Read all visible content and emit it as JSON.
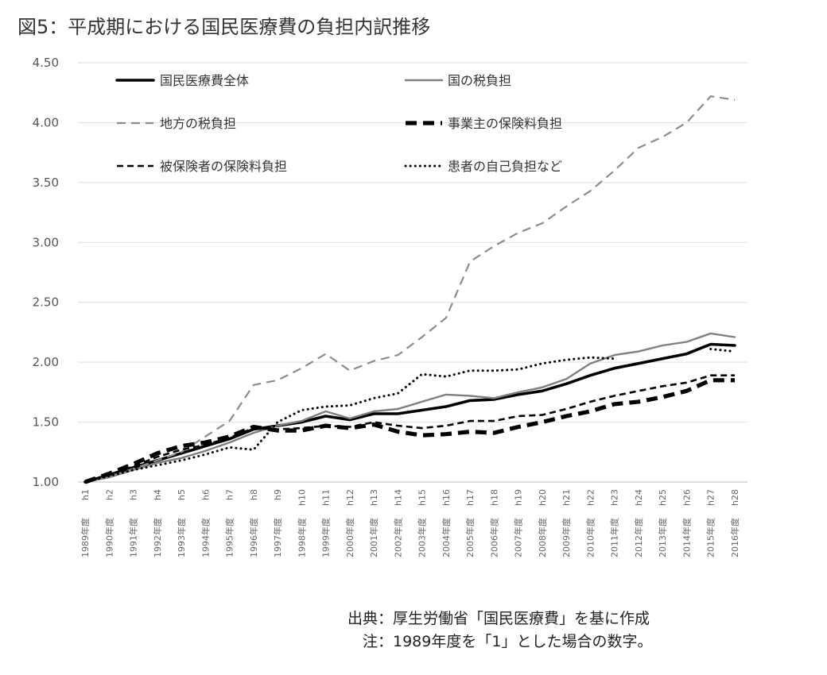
{
  "chart_data": {
    "type": "line",
    "title": "図5：平成期における国民医療費の負担内訳推移",
    "xlabel": "",
    "ylabel": "",
    "ylim": [
      1.0,
      4.5
    ],
    "yticks": [
      "1.00",
      "1.50",
      "2.00",
      "2.50",
      "3.00",
      "3.50",
      "4.00",
      "4.50"
    ],
    "grid": true,
    "legend_position": "top",
    "categories": [
      {
        "year": "1989年度",
        "era": "h1"
      },
      {
        "year": "1990年度",
        "era": "h2"
      },
      {
        "year": "1991年度",
        "era": "h3"
      },
      {
        "year": "1992年度",
        "era": "h4"
      },
      {
        "year": "1993年度",
        "era": "h5"
      },
      {
        "year": "1994年度",
        "era": "h6"
      },
      {
        "year": "1995年度",
        "era": "h7"
      },
      {
        "year": "1996年度",
        "era": "h8"
      },
      {
        "year": "1997年度",
        "era": "h9"
      },
      {
        "year": "1998年度",
        "era": "h10"
      },
      {
        "year": "1999年度",
        "era": "h11"
      },
      {
        "year": "2000年度",
        "era": "h12"
      },
      {
        "year": "2001年度",
        "era": "h13"
      },
      {
        "year": "2002年度",
        "era": "h14"
      },
      {
        "year": "2003年度",
        "era": "h15"
      },
      {
        "year": "2004年度",
        "era": "h16"
      },
      {
        "year": "2005年度",
        "era": "h17"
      },
      {
        "year": "2006年度",
        "era": "h18"
      },
      {
        "year": "2007年度",
        "era": "h19"
      },
      {
        "year": "2008年度",
        "era": "h20"
      },
      {
        "year": "2009年度",
        "era": "h21"
      },
      {
        "year": "2010年度",
        "era": "h22"
      },
      {
        "year": "2011年度",
        "era": "h23"
      },
      {
        "year": "2012年度",
        "era": "h24"
      },
      {
        "year": "2013年度",
        "era": "h25"
      },
      {
        "year": "2014年度",
        "era": "h26"
      },
      {
        "year": "2015年度",
        "era": "h27"
      },
      {
        "year": "2016年度",
        "era": "h28"
      }
    ],
    "series": [
      {
        "name": "国民医療費全体",
        "style": "solid-thick",
        "color": "#000000",
        "values": [
          1.0,
          1.06,
          1.12,
          1.18,
          1.24,
          1.3,
          1.36,
          1.44,
          1.47,
          1.5,
          1.55,
          1.52,
          1.57,
          1.57,
          1.6,
          1.63,
          1.68,
          1.69,
          1.73,
          1.76,
          1.82,
          1.89,
          1.95,
          1.99,
          2.03,
          2.07,
          2.15,
          2.14
        ]
      },
      {
        "name": "国の税負担",
        "style": "solid-gray",
        "color": "#7f7f7f",
        "values": [
          1.0,
          1.04,
          1.1,
          1.16,
          1.2,
          1.26,
          1.33,
          1.41,
          1.47,
          1.51,
          1.59,
          1.53,
          1.59,
          1.61,
          1.67,
          1.73,
          1.72,
          1.7,
          1.75,
          1.79,
          1.86,
          1.99,
          2.06,
          2.09,
          2.14,
          2.17,
          2.24,
          2.21
        ]
      },
      {
        "name": "地方の税負担",
        "style": "dash-gray",
        "color": "#8c8c8c",
        "values": [
          1.0,
          1.05,
          1.11,
          1.18,
          1.25,
          1.38,
          1.51,
          1.81,
          1.85,
          1.95,
          2.07,
          1.93,
          2.01,
          2.06,
          2.21,
          2.37,
          2.84,
          2.97,
          3.08,
          3.16,
          3.3,
          3.43,
          3.6,
          3.79,
          3.88,
          4.0,
          4.22,
          4.19
        ]
      },
      {
        "name": "事業主の保険料負担",
        "style": "dash-thick",
        "color": "#000000",
        "values": [
          1.0,
          1.07,
          1.15,
          1.24,
          1.3,
          1.33,
          1.38,
          1.46,
          1.43,
          1.43,
          1.47,
          1.45,
          1.48,
          1.42,
          1.39,
          1.4,
          1.42,
          1.41,
          1.46,
          1.5,
          1.55,
          1.59,
          1.65,
          1.67,
          1.71,
          1.76,
          1.85,
          1.85
        ]
      },
      {
        "name": "被保険者の保険料負担",
        "style": "dash-thin",
        "color": "#000000",
        "values": [
          1.0,
          1.06,
          1.13,
          1.21,
          1.27,
          1.31,
          1.37,
          1.45,
          1.44,
          1.45,
          1.47,
          1.46,
          1.5,
          1.47,
          1.45,
          1.47,
          1.51,
          1.51,
          1.55,
          1.56,
          1.61,
          1.67,
          1.72,
          1.76,
          1.8,
          1.83,
          1.89,
          1.89
        ]
      },
      {
        "name": "患者の自己負担など",
        "style": "dot",
        "color": "#000000",
        "values": [
          1.0,
          1.05,
          1.1,
          1.14,
          1.18,
          1.23,
          1.29,
          1.27,
          1.5,
          1.6,
          1.63,
          1.64,
          1.7,
          1.74,
          1.9,
          1.88,
          1.93,
          1.93,
          1.94,
          1.99,
          2.02,
          2.04,
          2.03,
          null,
          null,
          null,
          2.11,
          2.09
        ]
      }
    ]
  },
  "notes": {
    "source": "出典：厚生労働省「国民医療費」を基に作成",
    "base": "注：1989年度を「1」とした場合の数字。"
  }
}
